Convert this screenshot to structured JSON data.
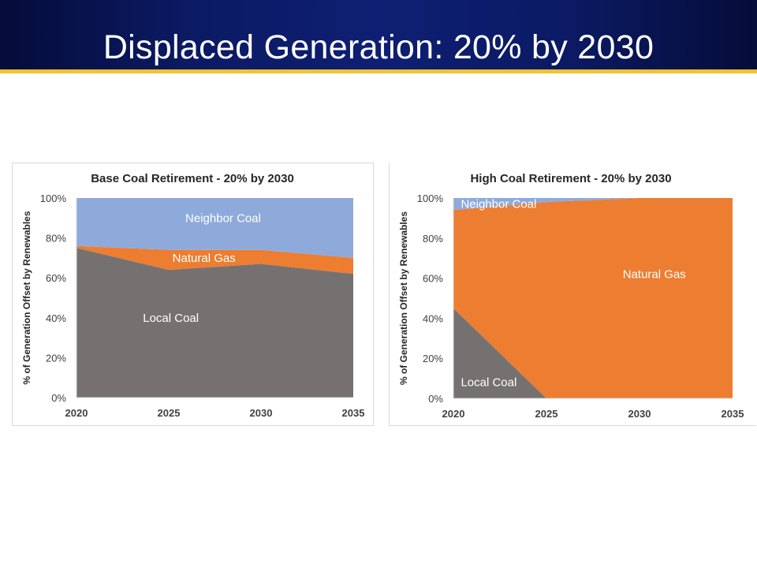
{
  "slide": {
    "title": "Displaced Generation: 20% by 2030"
  },
  "colors": {
    "header_bg": "#0b1a63",
    "header_accent": "#f2c230",
    "local_coal": "#767171",
    "natural_gas": "#ed7d31",
    "neighbor_coal": "#8eaadb"
  },
  "chart_data": [
    {
      "type": "area",
      "stacked": true,
      "title": "Base Coal Retirement - 20% by 2030",
      "xlabel": "",
      "ylabel": "% of Generation Offset by Renewables",
      "x": [
        2020,
        2025,
        2030,
        2035
      ],
      "xticks": [
        "2020",
        "2025",
        "2030",
        "2035"
      ],
      "ylim": [
        0,
        100
      ],
      "yticks": [
        "0%",
        "20%",
        "40%",
        "60%",
        "80%",
        "100%"
      ],
      "grid": false,
      "series": [
        {
          "name": "Local Coal",
          "values": [
            75,
            64,
            67,
            62
          ],
          "color": "#767171"
        },
        {
          "name": "Natural Gas",
          "values": [
            1,
            10,
            7,
            8
          ],
          "color": "#ed7d31"
        },
        {
          "name": "Neighbor Coal",
          "values": [
            24,
            26,
            26,
            30
          ],
          "color": "#8eaadb"
        }
      ],
      "series_labels": [
        {
          "text": "Neighbor Coal",
          "at": [
            2025.9,
            90
          ],
          "color": "#ffffff"
        },
        {
          "text": "Natural Gas",
          "at": [
            2025.2,
            70
          ],
          "color": "#ffffff"
        },
        {
          "text": "Local Coal",
          "at": [
            2023.6,
            40
          ],
          "color": "#ffffff"
        }
      ]
    },
    {
      "type": "area",
      "stacked": true,
      "title": "High Coal Retirement - 20% by 2030",
      "xlabel": "",
      "ylabel": "% of Generation Offset by Renewables",
      "x": [
        2020,
        2025,
        2030,
        2035
      ],
      "xticks": [
        "2020",
        "2025",
        "2030",
        "2035"
      ],
      "ylim": [
        0,
        100
      ],
      "yticks": [
        "0%",
        "20%",
        "40%",
        "60%",
        "80%",
        "100%"
      ],
      "grid": false,
      "series": [
        {
          "name": "Local Coal",
          "values": [
            45,
            0,
            0,
            0
          ],
          "color": "#767171"
        },
        {
          "name": "Natural Gas",
          "values": [
            49,
            98,
            100,
            100
          ],
          "color": "#ed7d31"
        },
        {
          "name": "Neighbor Coal",
          "values": [
            6,
            2,
            0,
            0
          ],
          "color": "#8eaadb"
        }
      ],
      "series_labels": [
        {
          "text": "Neighbor Coal",
          "at": [
            2020.4,
            97
          ],
          "color": "#ffffff"
        },
        {
          "text": "Natural Gas",
          "at": [
            2029.1,
            62
          ],
          "color": "#ffffff"
        },
        {
          "text": "Local Coal",
          "at": [
            2020.4,
            8
          ],
          "color": "#ffffff"
        }
      ]
    }
  ]
}
